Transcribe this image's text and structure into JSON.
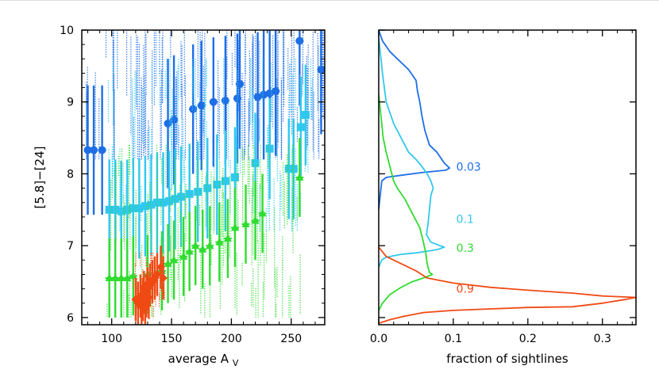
{
  "chart_data": [
    {
      "type": "scatter",
      "xlabel": "average A",
      "xlabel_subscript": "V",
      "ylabel": "[5.8]−[24]",
      "xlim": [
        75,
        278
      ],
      "ylim": [
        5.9,
        10.0
      ],
      "xticks": [
        100,
        150,
        200,
        250
      ],
      "yticks": [
        6,
        7,
        8,
        9,
        10
      ],
      "series": [
        {
          "color": "#1e6ee6",
          "marker": "circle",
          "points": [
            {
              "x": 80,
              "y": 8.33
            },
            {
              "x": 85,
              "y": 8.33
            },
            {
              "x": 92,
              "y": 8.33
            },
            {
              "x": 147,
              "y": 8.7
            },
            {
              "x": 152,
              "y": 8.75
            },
            {
              "x": 168,
              "y": 8.9
            },
            {
              "x": 175,
              "y": 8.95
            },
            {
              "x": 185,
              "y": 9.0
            },
            {
              "x": 195,
              "y": 9.02
            },
            {
              "x": 205,
              "y": 9.05
            },
            {
              "x": 207,
              "y": 9.25
            },
            {
              "x": 222,
              "y": 9.07
            },
            {
              "x": 227,
              "y": 9.1
            },
            {
              "x": 232,
              "y": 9.12
            },
            {
              "x": 237,
              "y": 9.15
            },
            {
              "x": 257,
              "y": 9.85
            },
            {
              "x": 275,
              "y": 9.45
            }
          ]
        },
        {
          "color": "#30c8ee",
          "marker": "square",
          "points": [
            {
              "x": 98,
              "y": 7.5
            },
            {
              "x": 103,
              "y": 7.5
            },
            {
              "x": 108,
              "y": 7.48
            },
            {
              "x": 113,
              "y": 7.5
            },
            {
              "x": 118,
              "y": 7.52
            },
            {
              "x": 123,
              "y": 7.52
            },
            {
              "x": 128,
              "y": 7.55
            },
            {
              "x": 133,
              "y": 7.57
            },
            {
              "x": 138,
              "y": 7.6
            },
            {
              "x": 143,
              "y": 7.6
            },
            {
              "x": 148,
              "y": 7.62
            },
            {
              "x": 153,
              "y": 7.65
            },
            {
              "x": 158,
              "y": 7.68
            },
            {
              "x": 165,
              "y": 7.72
            },
            {
              "x": 172,
              "y": 7.75
            },
            {
              "x": 180,
              "y": 7.8
            },
            {
              "x": 188,
              "y": 7.85
            },
            {
              "x": 195,
              "y": 7.9
            },
            {
              "x": 203,
              "y": 7.95
            },
            {
              "x": 220,
              "y": 8.15
            },
            {
              "x": 232,
              "y": 8.35
            },
            {
              "x": 248,
              "y": 8.07
            },
            {
              "x": 252,
              "y": 8.07
            },
            {
              "x": 258,
              "y": 8.65
            },
            {
              "x": 262,
              "y": 8.82
            }
          ]
        },
        {
          "color": "#30dc30",
          "marker": "triangle",
          "points": [
            {
              "x": 98,
              "y": 6.55
            },
            {
              "x": 103,
              "y": 6.55
            },
            {
              "x": 108,
              "y": 6.55
            },
            {
              "x": 113,
              "y": 6.55
            },
            {
              "x": 118,
              "y": 6.58
            },
            {
              "x": 130,
              "y": 6.6
            },
            {
              "x": 142,
              "y": 6.65
            },
            {
              "x": 147,
              "y": 6.75
            },
            {
              "x": 152,
              "y": 6.8
            },
            {
              "x": 160,
              "y": 6.85
            },
            {
              "x": 165,
              "y": 6.92
            },
            {
              "x": 170,
              "y": 7.0
            },
            {
              "x": 176,
              "y": 6.95
            },
            {
              "x": 182,
              "y": 7.0
            },
            {
              "x": 190,
              "y": 7.05
            },
            {
              "x": 197,
              "y": 7.1
            },
            {
              "x": 203,
              "y": 7.25
            },
            {
              "x": 212,
              "y": 7.3
            },
            {
              "x": 220,
              "y": 7.35
            },
            {
              "x": 226,
              "y": 7.45
            },
            {
              "x": 257,
              "y": 7.95
            }
          ]
        },
        {
          "color": "#f04a14",
          "marker": "diamond",
          "points": [
            {
              "x": 120,
              "y": 6.25
            },
            {
              "x": 122,
              "y": 6.2
            },
            {
              "x": 124,
              "y": 6.3
            },
            {
              "x": 125,
              "y": 6.15
            },
            {
              "x": 126,
              "y": 6.25
            },
            {
              "x": 127,
              "y": 6.35
            },
            {
              "x": 128,
              "y": 6.2
            },
            {
              "x": 129,
              "y": 6.3
            },
            {
              "x": 130,
              "y": 6.4
            },
            {
              "x": 131,
              "y": 6.28
            },
            {
              "x": 132,
              "y": 6.45
            },
            {
              "x": 134,
              "y": 6.5
            },
            {
              "x": 136,
              "y": 6.55
            },
            {
              "x": 138,
              "y": 6.6
            },
            {
              "x": 141,
              "y": 6.7
            },
            {
              "x": 143,
              "y": 6.55
            }
          ]
        }
      ]
    },
    {
      "type": "line",
      "xlabel": "fraction of sightlines",
      "xlim": [
        0.0,
        0.345
      ],
      "ylim": [
        5.9,
        10.0
      ],
      "xticks": [
        0.0,
        0.1,
        0.2,
        0.3
      ],
      "xtick_labels": [
        "0.0",
        "0.1",
        "0.2",
        "0.3"
      ],
      "series": [
        {
          "name": "0.03",
          "color": "#1e6ee6",
          "points": [
            {
              "x": 0.0,
              "y": 10.0
            },
            {
              "x": 0.005,
              "y": 9.85
            },
            {
              "x": 0.015,
              "y": 9.7
            },
            {
              "x": 0.025,
              "y": 9.6
            },
            {
              "x": 0.04,
              "y": 9.45
            },
            {
              "x": 0.05,
              "y": 9.3
            },
            {
              "x": 0.052,
              "y": 9.15
            },
            {
              "x": 0.055,
              "y": 9.0
            },
            {
              "x": 0.058,
              "y": 8.8
            },
            {
              "x": 0.062,
              "y": 8.6
            },
            {
              "x": 0.068,
              "y": 8.4
            },
            {
              "x": 0.078,
              "y": 8.3
            },
            {
              "x": 0.088,
              "y": 8.15
            },
            {
              "x": 0.095,
              "y": 8.08
            },
            {
              "x": 0.09,
              "y": 8.05
            },
            {
              "x": 0.06,
              "y": 8.02
            },
            {
              "x": 0.03,
              "y": 7.98
            },
            {
              "x": 0.01,
              "y": 7.95
            },
            {
              "x": 0.004,
              "y": 7.9
            },
            {
              "x": 0.002,
              "y": 7.7
            },
            {
              "x": 0.0,
              "y": 7.5
            }
          ]
        },
        {
          "name": "0.1",
          "color": "#30c8ee",
          "points": [
            {
              "x": 0.0,
              "y": 9.9
            },
            {
              "x": 0.005,
              "y": 9.4
            },
            {
              "x": 0.01,
              "y": 9.0
            },
            {
              "x": 0.02,
              "y": 8.7
            },
            {
              "x": 0.03,
              "y": 8.5
            },
            {
              "x": 0.04,
              "y": 8.3
            },
            {
              "x": 0.05,
              "y": 8.2
            },
            {
              "x": 0.058,
              "y": 8.1
            },
            {
              "x": 0.065,
              "y": 8.0
            },
            {
              "x": 0.07,
              "y": 7.9
            },
            {
              "x": 0.073,
              "y": 7.8
            },
            {
              "x": 0.07,
              "y": 7.7
            },
            {
              "x": 0.068,
              "y": 7.5
            },
            {
              "x": 0.066,
              "y": 7.3
            },
            {
              "x": 0.064,
              "y": 7.15
            },
            {
              "x": 0.07,
              "y": 7.05
            },
            {
              "x": 0.082,
              "y": 7.0
            },
            {
              "x": 0.088,
              "y": 6.98
            },
            {
              "x": 0.08,
              "y": 6.95
            },
            {
              "x": 0.07,
              "y": 6.93
            },
            {
              "x": 0.05,
              "y": 6.9
            },
            {
              "x": 0.03,
              "y": 6.88
            },
            {
              "x": 0.01,
              "y": 6.84
            },
            {
              "x": 0.004,
              "y": 6.8
            },
            {
              "x": 0.0,
              "y": 6.7
            }
          ]
        },
        {
          "name": "0.3",
          "color": "#30dc30",
          "points": [
            {
              "x": 0.0,
              "y": 9.1
            },
            {
              "x": 0.002,
              "y": 8.9
            },
            {
              "x": 0.004,
              "y": 8.7
            },
            {
              "x": 0.006,
              "y": 8.5
            },
            {
              "x": 0.01,
              "y": 8.3
            },
            {
              "x": 0.015,
              "y": 8.1
            },
            {
              "x": 0.02,
              "y": 7.9
            },
            {
              "x": 0.025,
              "y": 7.8
            },
            {
              "x": 0.035,
              "y": 7.65
            },
            {
              "x": 0.045,
              "y": 7.45
            },
            {
              "x": 0.055,
              "y": 7.25
            },
            {
              "x": 0.06,
              "y": 7.05
            },
            {
              "x": 0.063,
              "y": 6.9
            },
            {
              "x": 0.065,
              "y": 6.75
            },
            {
              "x": 0.068,
              "y": 6.63
            },
            {
              "x": 0.072,
              "y": 6.6
            },
            {
              "x": 0.06,
              "y": 6.55
            },
            {
              "x": 0.045,
              "y": 6.5
            },
            {
              "x": 0.03,
              "y": 6.42
            },
            {
              "x": 0.015,
              "y": 6.32
            },
            {
              "x": 0.005,
              "y": 6.2
            },
            {
              "x": 0.0,
              "y": 6.1
            }
          ]
        },
        {
          "name": "0.9",
          "color": "#f04a14",
          "points": [
            {
              "x": 0.0,
              "y": 6.98
            },
            {
              "x": 0.01,
              "y": 6.85
            },
            {
              "x": 0.03,
              "y": 6.75
            },
            {
              "x": 0.05,
              "y": 6.65
            },
            {
              "x": 0.065,
              "y": 6.55
            },
            {
              "x": 0.1,
              "y": 6.48
            },
            {
              "x": 0.15,
              "y": 6.42
            },
            {
              "x": 0.2,
              "y": 6.38
            },
            {
              "x": 0.26,
              "y": 6.34
            },
            {
              "x": 0.3,
              "y": 6.3
            },
            {
              "x": 0.345,
              "y": 6.28
            },
            {
              "x": 0.33,
              "y": 6.25
            },
            {
              "x": 0.3,
              "y": 6.2
            },
            {
              "x": 0.26,
              "y": 6.15
            },
            {
              "x": 0.2,
              "y": 6.14
            },
            {
              "x": 0.15,
              "y": 6.12
            },
            {
              "x": 0.1,
              "y": 6.1
            },
            {
              "x": 0.06,
              "y": 6.07
            },
            {
              "x": 0.035,
              "y": 6.02
            },
            {
              "x": 0.015,
              "y": 5.97
            },
            {
              "x": 0.0,
              "y": 5.92
            }
          ]
        }
      ]
    }
  ]
}
